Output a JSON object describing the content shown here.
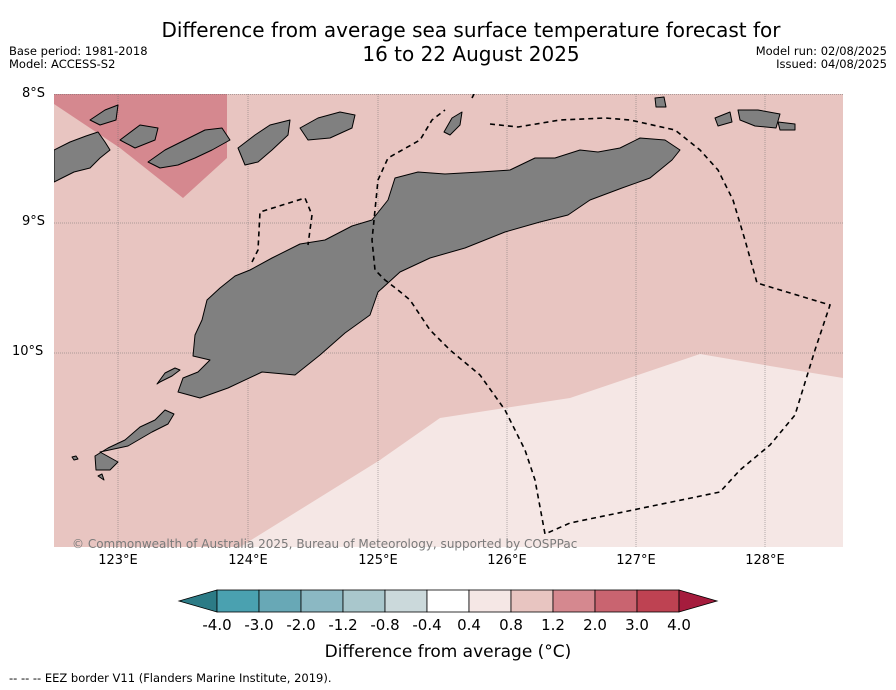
{
  "header": {
    "title_line1": "Difference from average sea surface temperature forecast for",
    "title_line2": "16 to 22 August 2025",
    "base_period": "Base period: 1981-2018",
    "model": "Model: ACCESS-S2",
    "model_run": "Model run: 02/08/2025",
    "issued": "Issued: 04/08/2025"
  },
  "map": {
    "lat_labels": [
      "8°S",
      "9°S",
      "10°S"
    ],
    "lon_labels": [
      "123°E",
      "124°E",
      "125°E",
      "126°E",
      "127°E",
      "128°E"
    ],
    "copyright": "© Commonwealth of Australia 2025, Bureau of Meteorology, supported by COSPPac",
    "colors": {
      "anomaly_0_4_to_0_8": "#f5e7e5",
      "anomaly_0_8_to_1_2": "#e8c5c1",
      "anomaly_1_2_to_2_0": "#d5888f",
      "land": "#808080"
    }
  },
  "colorbar": {
    "ticks": [
      "-4.0",
      "-3.0",
      "-2.0",
      "-1.2",
      "-0.8",
      "-0.4",
      "0.4",
      "0.8",
      "1.2",
      "2.0",
      "3.0",
      "4.0"
    ],
    "colors": [
      "#2c7b86",
      "#4aa1b0",
      "#68a8b6",
      "#8bb8c3",
      "#a9c7cc",
      "#cbd9db",
      "#ffffff",
      "#f5e7e5",
      "#e8c5c1",
      "#d5888f",
      "#c96470",
      "#be4252",
      "#a51c3d"
    ],
    "title": "Difference from average (°C)"
  },
  "footer": {
    "eez_note": "--  --  -- EEZ border V11 (Flanders Marine Institute, 2019)."
  }
}
